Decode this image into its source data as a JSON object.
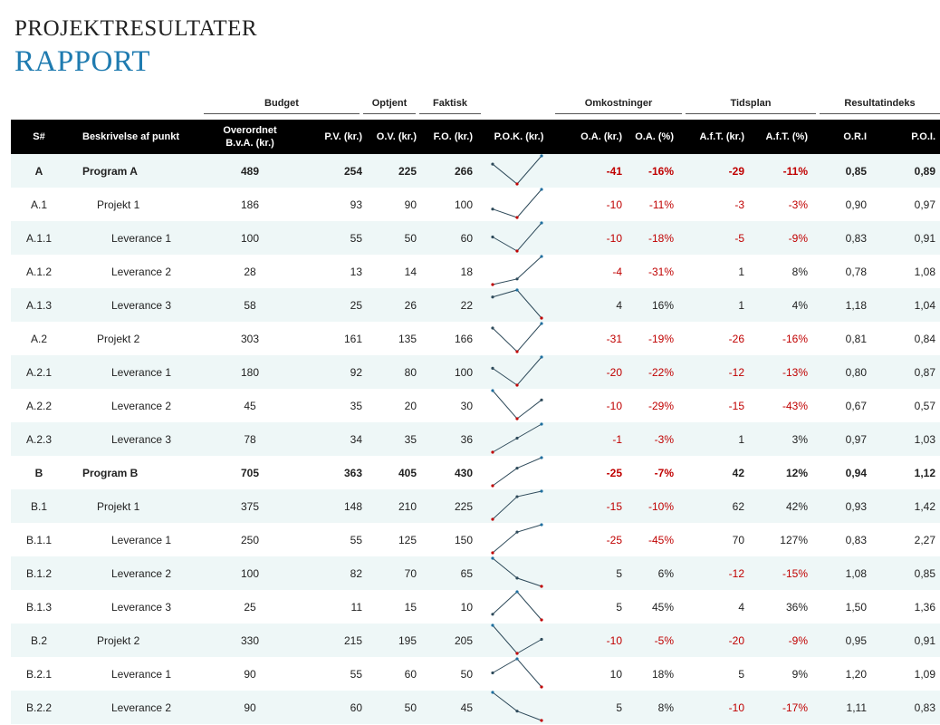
{
  "header": {
    "title": "PROJEKTRESULTATER",
    "subtitle": "RAPPORT"
  },
  "groups": {
    "budget": "Budget",
    "earned": "Optjent",
    "actual": "Faktisk",
    "costs": "Omkostninger",
    "schedule": "Tidsplan",
    "index": "Resultatindeks"
  },
  "columns": {
    "id": "S#",
    "desc": "Beskrivelse af punkt",
    "bac": "Overordnet B.v.A. (kr.)",
    "pv": "P.V. (kr.)",
    "ev": "O.V. (kr.)",
    "ac": "F.O. (kr.)",
    "trend": "P.O.K. (kr.)",
    "cv": "O.A. (kr.)",
    "cvp": "O.A. (%)",
    "sv": "A.f.T. (kr.)",
    "svp": "A.f.T. (%)",
    "cpi": "O.R.I",
    "spi": "P.O.I."
  },
  "rows": [
    {
      "id": "A",
      "desc": "Program A",
      "level": 0,
      "bac": "489",
      "pv": "254",
      "ev": "225",
      "ac": "266",
      "cv": "-41",
      "cvp": "-16%",
      "sv": "-29",
      "svp": "-11%",
      "cpi": "0,85",
      "spi": "0,89",
      "spark": [
        254,
        225,
        266
      ]
    },
    {
      "id": "A.1",
      "desc": "Projekt 1",
      "level": 1,
      "bac": "186",
      "pv": "93",
      "ev": "90",
      "ac": "100",
      "cv": "-10",
      "cvp": "-11%",
      "sv": "-3",
      "svp": "-3%",
      "cpi": "0,90",
      "spi": "0,97",
      "spark": [
        93,
        90,
        100
      ]
    },
    {
      "id": "A.1.1",
      "desc": "Leverance 1",
      "level": 2,
      "bac": "100",
      "pv": "55",
      "ev": "50",
      "ac": "60",
      "cv": "-10",
      "cvp": "-18%",
      "sv": "-5",
      "svp": "-9%",
      "cpi": "0,83",
      "spi": "0,91",
      "spark": [
        55,
        50,
        60
      ]
    },
    {
      "id": "A.1.2",
      "desc": "Leverance 2",
      "level": 2,
      "bac": "28",
      "pv": "13",
      "ev": "14",
      "ac": "18",
      "cv": "-4",
      "cvp": "-31%",
      "sv": "1",
      "svp": "8%",
      "cpi": "0,78",
      "spi": "1,08",
      "spark": [
        13,
        14,
        18
      ]
    },
    {
      "id": "A.1.3",
      "desc": "Leverance 3",
      "level": 2,
      "bac": "58",
      "pv": "25",
      "ev": "26",
      "ac": "22",
      "cv": "4",
      "cvp": "16%",
      "sv": "1",
      "svp": "4%",
      "cpi": "1,18",
      "spi": "1,04",
      "spark": [
        25,
        26,
        22
      ]
    },
    {
      "id": "A.2",
      "desc": "Projekt 2",
      "level": 1,
      "bac": "303",
      "pv": "161",
      "ev": "135",
      "ac": "166",
      "cv": "-31",
      "cvp": "-19%",
      "sv": "-26",
      "svp": "-16%",
      "cpi": "0,81",
      "spi": "0,84",
      "spark": [
        161,
        135,
        166
      ]
    },
    {
      "id": "A.2.1",
      "desc": "Leverance 1",
      "level": 2,
      "bac": "180",
      "pv": "92",
      "ev": "80",
      "ac": "100",
      "cv": "-20",
      "cvp": "-22%",
      "sv": "-12",
      "svp": "-13%",
      "cpi": "0,80",
      "spi": "0,87",
      "spark": [
        92,
        80,
        100
      ]
    },
    {
      "id": "A.2.2",
      "desc": "Leverance 2",
      "level": 2,
      "bac": "45",
      "pv": "35",
      "ev": "20",
      "ac": "30",
      "cv": "-10",
      "cvp": "-29%",
      "sv": "-15",
      "svp": "-43%",
      "cpi": "0,67",
      "spi": "0,57",
      "spark": [
        35,
        20,
        30
      ]
    },
    {
      "id": "A.2.3",
      "desc": "Leverance 3",
      "level": 2,
      "bac": "78",
      "pv": "34",
      "ev": "35",
      "ac": "36",
      "cv": "-1",
      "cvp": "-3%",
      "sv": "1",
      "svp": "3%",
      "cpi": "0,97",
      "spi": "1,03",
      "spark": [
        34,
        35,
        36
      ]
    },
    {
      "id": "B",
      "desc": "Program B",
      "level": 0,
      "bac": "705",
      "pv": "363",
      "ev": "405",
      "ac": "430",
      "cv": "-25",
      "cvp": "-7%",
      "sv": "42",
      "svp": "12%",
      "cpi": "0,94",
      "spi": "1,12",
      "spark": [
        363,
        405,
        430
      ]
    },
    {
      "id": "B.1",
      "desc": "Projekt 1",
      "level": 1,
      "bac": "375",
      "pv": "148",
      "ev": "210",
      "ac": "225",
      "cv": "-15",
      "cvp": "-10%",
      "sv": "62",
      "svp": "42%",
      "cpi": "0,93",
      "spi": "1,42",
      "spark": [
        148,
        210,
        225
      ]
    },
    {
      "id": "B.1.1",
      "desc": "Leverance 1",
      "level": 2,
      "bac": "250",
      "pv": "55",
      "ev": "125",
      "ac": "150",
      "cv": "-25",
      "cvp": "-45%",
      "sv": "70",
      "svp": "127%",
      "cpi": "0,83",
      "spi": "2,27",
      "spark": [
        55,
        125,
        150
      ]
    },
    {
      "id": "B.1.2",
      "desc": "Leverance 2",
      "level": 2,
      "bac": "100",
      "pv": "82",
      "ev": "70",
      "ac": "65",
      "cv": "5",
      "cvp": "6%",
      "sv": "-12",
      "svp": "-15%",
      "cpi": "1,08",
      "spi": "0,85",
      "spark": [
        82,
        70,
        65
      ]
    },
    {
      "id": "B.1.3",
      "desc": "Leverance 3",
      "level": 2,
      "bac": "25",
      "pv": "11",
      "ev": "15",
      "ac": "10",
      "cv": "5",
      "cvp": "45%",
      "sv": "4",
      "svp": "36%",
      "cpi": "1,50",
      "spi": "1,36",
      "spark": [
        11,
        15,
        10
      ]
    },
    {
      "id": "B.2",
      "desc": "Projekt 2",
      "level": 1,
      "bac": "330",
      "pv": "215",
      "ev": "195",
      "ac": "205",
      "cv": "-10",
      "cvp": "-5%",
      "sv": "-20",
      "svp": "-9%",
      "cpi": "0,95",
      "spi": "0,91",
      "spark": [
        215,
        195,
        205
      ]
    },
    {
      "id": "B.2.1",
      "desc": "Leverance 1",
      "level": 2,
      "bac": "90",
      "pv": "55",
      "ev": "60",
      "ac": "50",
      "cv": "10",
      "cvp": "18%",
      "sv": "5",
      "svp": "9%",
      "cpi": "1,20",
      "spi": "1,09",
      "spark": [
        55,
        60,
        50
      ]
    },
    {
      "id": "B.2.2",
      "desc": "Leverance 2",
      "level": 2,
      "bac": "90",
      "pv": "60",
      "ev": "50",
      "ac": "45",
      "cv": "5",
      "cvp": "8%",
      "sv": "-10",
      "svp": "-17%",
      "cpi": "1,11",
      "spi": "0,83",
      "spark": [
        60,
        50,
        45
      ]
    }
  ],
  "colors": {
    "accent": "#1f7bb0",
    "negative": "#c00000",
    "spark_line": "#2e4a5a",
    "spark_high": "#1f6f9f",
    "spark_low": "#c00000"
  }
}
